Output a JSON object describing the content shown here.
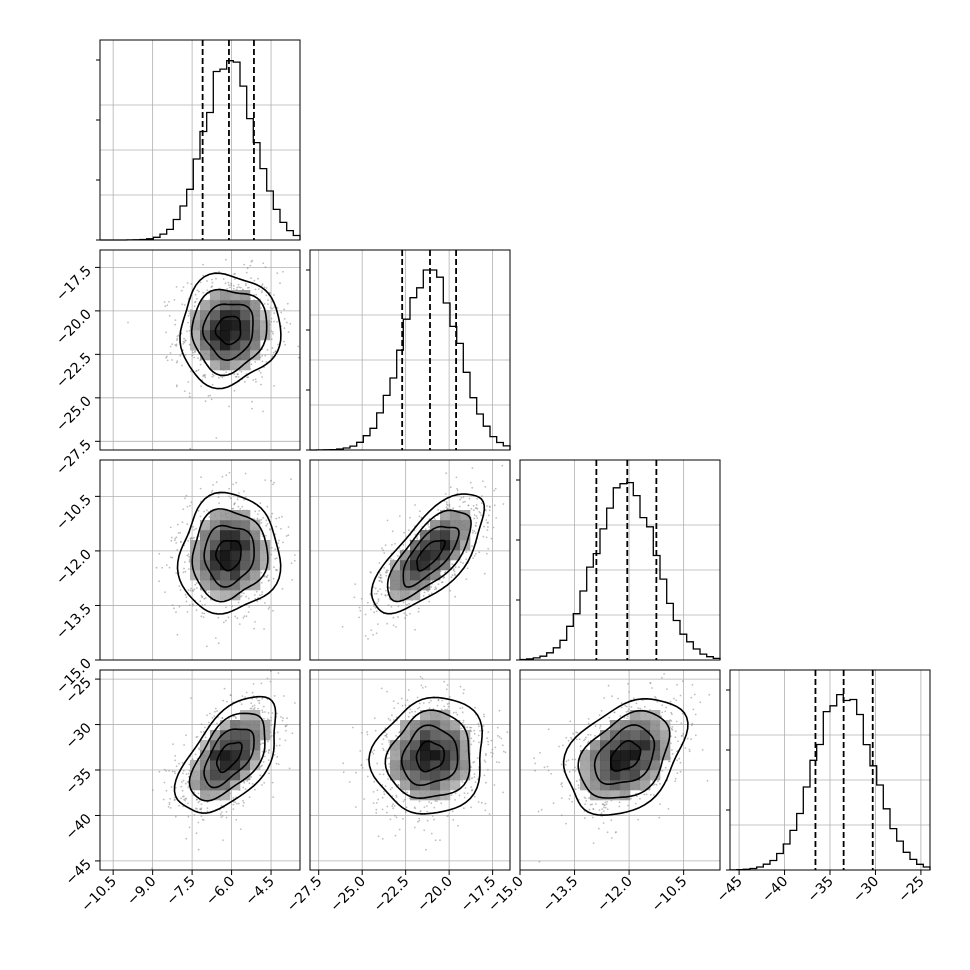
{
  "chart_data": {
    "type": "corner",
    "n_params": 4,
    "params": [
      {
        "index": 0,
        "range": [
          -11.0,
          -3.4
        ],
        "mean": -6.1,
        "sd": 0.95,
        "quantiles": [
          -7.1,
          -6.1,
          -5.15
        ]
      },
      {
        "index": 1,
        "range": [
          -28.0,
          -16.5
        ],
        "mean": -21.1,
        "sd": 1.6,
        "quantiles": [
          -22.7,
          -21.1,
          -19.6
        ]
      },
      {
        "index": 2,
        "range": [
          -15.0,
          -9.5
        ],
        "mean": -12.1,
        "sd": 0.82,
        "quantiles": [
          -12.9,
          -12.05,
          -11.25
        ]
      },
      {
        "index": 3,
        "range": [
          -46.0,
          -24.0
        ],
        "mean": -33.5,
        "sd": 3.2,
        "quantiles": [
          -36.6,
          -33.5,
          -30.3
        ]
      }
    ],
    "correlations": [
      [
        1,
        0.05,
        0.05,
        0.55
      ],
      [
        0.05,
        1,
        0.7,
        0.1
      ],
      [
        0.05,
        0.7,
        1,
        0.35
      ],
      [
        0.55,
        0.1,
        0.35,
        1
      ]
    ],
    "tick_labels": {
      "x": [
        [
          "−10.5",
          "−9.0",
          "−7.5",
          "−6.0",
          "−4.5"
        ],
        [
          "−27.5",
          "−25.0",
          "−22.5",
          "−20.0",
          "−17.5"
        ],
        [
          "−15.0",
          "−13.5",
          "−12.0",
          "−10.5"
        ],
        [
          "−45",
          "−40",
          "−35",
          "−30",
          "−25"
        ]
      ],
      "y": [
        [],
        [
          "−17.5",
          "−20.0",
          "−22.5",
          "−25.0",
          "−27.5"
        ],
        [
          "−10.5",
          "−12.0",
          "−13.5",
          "−15.0"
        ],
        [
          "−25",
          "−30",
          "−35",
          "−40",
          "−45"
        ]
      ]
    },
    "tick_values": {
      "x": [
        [
          -10.5,
          -9.0,
          -7.5,
          -6.0,
          -4.5
        ],
        [
          -27.5,
          -25.0,
          -22.5,
          -20.0,
          -17.5
        ],
        [
          -15.0,
          -13.5,
          -12.0,
          -10.5
        ],
        [
          -45,
          -40,
          -35,
          -30,
          -25
        ]
      ],
      "y": [
        [],
        [
          -17.5,
          -20.0,
          -22.5,
          -25.0,
          -27.5
        ],
        [
          -10.5,
          -12.0,
          -13.5,
          -15.0
        ],
        [
          -25,
          -30,
          -35,
          -40,
          -45
        ]
      ]
    },
    "histogram_bins": 30,
    "contour_levels": [
      0.5,
      1.0,
      1.5,
      2.0
    ],
    "grid": true,
    "colors": {
      "line": "#000000",
      "points": "#888888",
      "grid": "#b0b0b0",
      "density": "#000000"
    }
  }
}
